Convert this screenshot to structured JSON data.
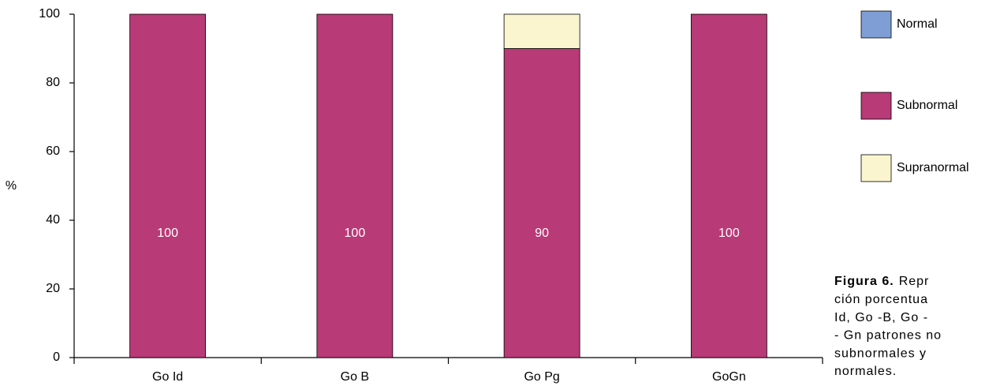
{
  "chart_data": {
    "type": "stacked_bar",
    "y_label": "%",
    "categories": [
      "Go Id",
      "Go B",
      "Go Pg",
      "GoGn"
    ],
    "series": [
      {
        "name": "Normal",
        "color": "#7f9ed5",
        "values": [
          0,
          0,
          0,
          0
        ]
      },
      {
        "name": "Subnormal",
        "color": "#b83a76",
        "values": [
          100,
          100,
          90,
          100
        ],
        "labels": true
      },
      {
        "name": "Supranormal",
        "color": "#fbf5cf",
        "values": [
          0,
          0,
          10,
          0
        ]
      }
    ],
    "ylim": [
      0,
      100
    ],
    "yticks": [
      0,
      20,
      40,
      60,
      80,
      100
    ],
    "grid": false,
    "legend": "right"
  },
  "caption": {
    "label": "Figura 6.",
    "lines": [
      "Repr",
      "ción porcentua",
      "Id, Go -B, Go -",
      "- Gn patrones no",
      "subnormales y",
      "normales."
    ]
  }
}
